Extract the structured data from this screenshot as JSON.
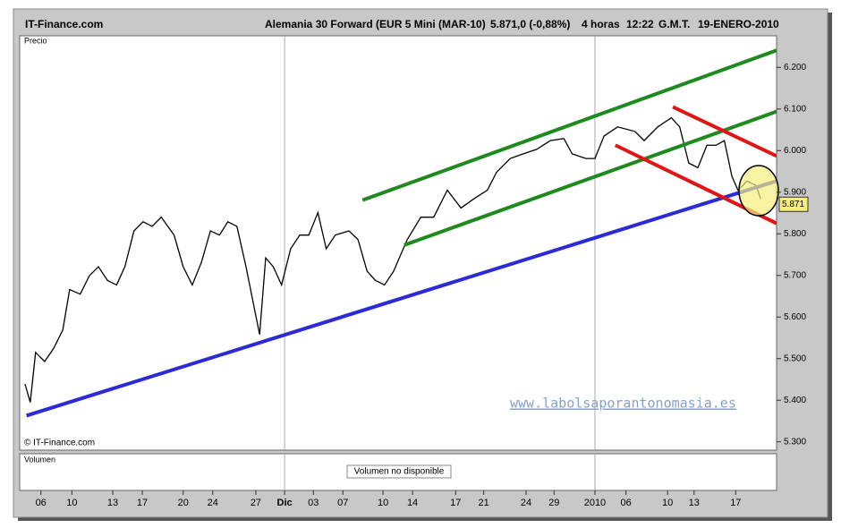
{
  "chart_data": {
    "type": "line",
    "site": "IT-Finance.com",
    "title": "Alemania 30 Forward (EUR 5 Mini (MAR-10)",
    "quote": "5.871,0 (-0,88%)",
    "period": "4 horas",
    "time": "12:22",
    "timezone": "G.M.T.",
    "date": "19-ENERO-2010",
    "panel_label": "Precio",
    "copyright": "© IT-Finance.com",
    "watermark": "www.labolsaporantonomasia.es",
    "volume_label": "Volumen",
    "volume_note": "Volumen no disponible",
    "last_price": {
      "value": 5871,
      "label": "5.871"
    },
    "xlim": [
      0,
      100
    ],
    "ylim": [
      5280,
      6276
    ],
    "xticks": [
      {
        "value": 2.8,
        "label": "06"
      },
      {
        "value": 6.9,
        "label": "10"
      },
      {
        "value": 12.3,
        "label": "13"
      },
      {
        "value": 16.2,
        "label": "17"
      },
      {
        "value": 21.6,
        "label": "20"
      },
      {
        "value": 25.5,
        "label": "24"
      },
      {
        "value": 31.2,
        "label": "27"
      },
      {
        "value": 35.0,
        "label": "Dic"
      },
      {
        "value": 38.8,
        "label": "03"
      },
      {
        "value": 42.7,
        "label": "07"
      },
      {
        "value": 48.0,
        "label": "10"
      },
      {
        "value": 51.9,
        "label": "14"
      },
      {
        "value": 57.6,
        "label": "17"
      },
      {
        "value": 61.3,
        "label": "21"
      },
      {
        "value": 66.9,
        "label": "24"
      },
      {
        "value": 70.6,
        "label": "29"
      },
      {
        "value": 76.0,
        "label": "2010"
      },
      {
        "value": 80.1,
        "label": "06"
      },
      {
        "value": 85.6,
        "label": "10"
      },
      {
        "value": 89.1,
        "label": "13"
      },
      {
        "value": 94.6,
        "label": "17"
      }
    ],
    "xgrid": [
      35.0,
      76.0
    ],
    "yticks": [
      {
        "value": 5300,
        "label": "5.300"
      },
      {
        "value": 5400,
        "label": "5.400"
      },
      {
        "value": 5500,
        "label": "5.500"
      },
      {
        "value": 5600,
        "label": "5.600"
      },
      {
        "value": 5700,
        "label": "5.700"
      },
      {
        "value": 5800,
        "label": "5.800"
      },
      {
        "value": 5900,
        "label": "5.900"
      },
      {
        "value": 6000,
        "label": "6.000"
      },
      {
        "value": 6100,
        "label": "6.100"
      },
      {
        "value": 6200,
        "label": "6.200"
      }
    ],
    "color": "#000000",
    "x": [
      0.7,
      1.4,
      2.1,
      3.3,
      4.5,
      5.7,
      6.6,
      8.0,
      9.2,
      10.4,
      11.6,
      12.8,
      13.9,
      15.1,
      16.3,
      17.5,
      18.7,
      20.4,
      21.6,
      22.8,
      24.0,
      25.2,
      26.4,
      27.5,
      28.7,
      29.9,
      31.1,
      31.7,
      32.5,
      33.5,
      34.6,
      35.8,
      37.0,
      38.2,
      39.4,
      40.5,
      41.7,
      43.5,
      44.7,
      45.9,
      47.0,
      48.2,
      49.4,
      51.2,
      53.0,
      54.7,
      56.5,
      58.3,
      60.0,
      61.8,
      63.0,
      64.8,
      66.5,
      68.3,
      70.1,
      71.9,
      73.0,
      74.8,
      76.0,
      77.2,
      79.0,
      81.3,
      82.5,
      84.3,
      86.1,
      87.2,
      88.4,
      89.6,
      90.8,
      92.0,
      93.1,
      94.1,
      94.9,
      96.1,
      97.3,
      97.9
    ],
    "values": [
      5439,
      5395,
      5515,
      5493,
      5525,
      5569,
      5666,
      5655,
      5699,
      5721,
      5688,
      5677,
      5721,
      5807,
      5829,
      5818,
      5840,
      5797,
      5721,
      5677,
      5731,
      5807,
      5797,
      5829,
      5818,
      5721,
      5612,
      5558,
      5742,
      5721,
      5677,
      5764,
      5797,
      5797,
      5851,
      5764,
      5797,
      5807,
      5786,
      5710,
      5688,
      5677,
      5710,
      5786,
      5840,
      5840,
      5905,
      5862,
      5884,
      5905,
      5948,
      5981,
      5992,
      6003,
      6024,
      6029,
      5992,
      5981,
      5981,
      6035,
      6057,
      6046,
      6024,
      6057,
      6079,
      6057,
      5970,
      5959,
      6013,
      6013,
      6024,
      5938,
      5905,
      5927,
      5916,
      5884
    ],
    "trendlines": [
      {
        "color": "#2a2ad8",
        "x": [
          0.9,
          100
        ],
        "y": [
          5363,
          5927
        ]
      },
      {
        "color": "#1e8a1e",
        "x": [
          45.3,
          100
        ],
        "y": [
          5881,
          6241
        ]
      },
      {
        "color": "#1e8a1e",
        "x": [
          50.8,
          100
        ],
        "y": [
          5773,
          6094
        ]
      },
      {
        "color": "#e01515",
        "x": [
          86.3,
          100
        ],
        "y": [
          6105,
          5987
        ]
      },
      {
        "color": "#e01515",
        "x": [
          78.7,
          100
        ],
        "y": [
          6013,
          5825
        ]
      }
    ]
  }
}
